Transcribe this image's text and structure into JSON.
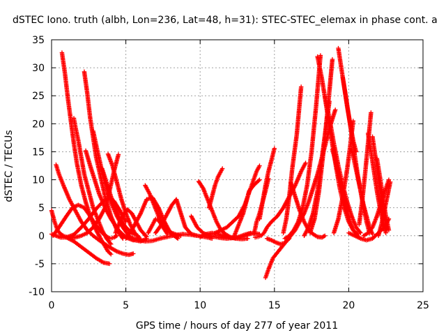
{
  "chart_data": {
    "type": "scatter",
    "title": "dSTEC Iono. truth (albh, Lon=236, Lat=48, h=31): STEC-STEC_elemax in phase cont. a",
    "xlabel": "GPS time / hours of day 277 of year 2011",
    "ylabel": "dSTEC  / TECUs",
    "xlim": [
      0,
      25
    ],
    "ylim": [
      -10,
      35
    ],
    "xticks": [
      0,
      5,
      10,
      15,
      20,
      25
    ],
    "yticks": [
      -10,
      -5,
      0,
      5,
      10,
      15,
      20,
      25,
      30,
      35
    ],
    "xtick_labels": [
      "0",
      "5",
      "10",
      "15",
      "20",
      "25"
    ],
    "ytick_labels": [
      "-10",
      "-5",
      "0",
      "5",
      "10",
      "15",
      "20",
      "25",
      "30",
      "35"
    ],
    "grid": true,
    "marker": "+",
    "series_color": "#ff0000",
    "series": [
      {
        "x": [
          0.0,
          0.2,
          0.4,
          0.6,
          0.8,
          1.0,
          1.3,
          1.6,
          2.0,
          2.4,
          2.8,
          3.2,
          3.6,
          3.9,
          4.2,
          4.5
        ],
        "y": [
          4.5,
          2.5,
          1.0,
          0.3,
          0.0,
          -0.2,
          -0.4,
          -0.3,
          0.0,
          0.5,
          1.5,
          3.0,
          5.0,
          8.0,
          11.5,
          14.5
        ]
      },
      {
        "x": [
          0.3,
          0.5,
          0.8,
          1.2,
          1.6,
          2.0,
          2.4,
          2.8,
          3.2,
          3.6,
          4.0,
          4.4,
          4.8,
          5.2,
          5.5
        ],
        "y": [
          12.7,
          11.0,
          9.0,
          6.5,
          4.5,
          2.5,
          1.0,
          0.0,
          -0.8,
          -1.5,
          -2.2,
          -2.8,
          -3.2,
          -3.4,
          -3.2
        ]
      },
      {
        "x": [
          0.1,
          0.5,
          1.0,
          1.4,
          1.8,
          2.2,
          2.6,
          3.0,
          3.4,
          3.8,
          4.0,
          4.2,
          4.4
        ],
        "y": [
          0.0,
          1.5,
          3.5,
          5.0,
          5.5,
          5.0,
          3.5,
          1.8,
          0.5,
          -0.3,
          -0.5,
          -0.3,
          0.0
        ]
      },
      {
        "x": [
          0.7,
          0.9,
          1.1,
          1.3,
          1.5,
          1.7,
          2.0,
          2.3,
          2.6,
          3.0,
          3.4,
          3.8,
          4.0
        ],
        "y": [
          32.7,
          29.0,
          24.5,
          20.5,
          16.5,
          13.0,
          9.0,
          6.0,
          3.5,
          1.0,
          -1.0,
          -2.8,
          -3.3
        ]
      },
      {
        "x": [
          0.0,
          0.3,
          0.6,
          1.0,
          1.5,
          2.0,
          2.5,
          3.0,
          3.5,
          3.9,
          4.2,
          4.6,
          5.0
        ],
        "y": [
          0.3,
          0.0,
          -0.3,
          -0.3,
          0.2,
          1.5,
          3.0,
          4.8,
          6.2,
          6.7,
          6.2,
          4.5,
          2.5
        ]
      },
      {
        "x": [
          1.0,
          1.5,
          2.0,
          2.5,
          3.0,
          3.5,
          3.9
        ],
        "y": [
          -0.3,
          -1.0,
          -2.0,
          -3.0,
          -4.0,
          -4.8,
          -5.0
        ]
      },
      {
        "x": [
          1.5,
          1.6,
          1.8,
          2.0,
          2.2,
          2.5,
          2.8,
          3.1,
          3.4,
          3.7,
          4.0
        ],
        "y": [
          21.0,
          19.5,
          17.0,
          14.0,
          11.0,
          8.0,
          5.0,
          3.0,
          1.0,
          -0.5,
          -1.5
        ]
      },
      {
        "x": [
          2.2,
          2.4,
          2.6,
          2.8,
          3.0,
          3.3,
          3.6,
          4.0,
          4.4,
          4.8
        ],
        "y": [
          29.3,
          25.5,
          21.0,
          17.5,
          14.0,
          10.5,
          7.0,
          3.5,
          1.0,
          -0.5
        ]
      },
      {
        "x": [
          2.3,
          2.6,
          2.9,
          3.2,
          3.6,
          4.0,
          4.5,
          5.0,
          5.5,
          5.9
        ],
        "y": [
          15.2,
          12.5,
          10.0,
          7.5,
          5.0,
          3.0,
          1.0,
          -0.3,
          -0.8,
          -0.5
        ]
      },
      {
        "x": [
          2.8,
          3.1,
          3.4,
          3.7,
          4.0,
          4.4,
          4.8,
          5.2,
          5.6,
          6.0,
          6.4
        ],
        "y": [
          18.7,
          15.0,
          11.5,
          8.5,
          6.0,
          3.5,
          1.5,
          0.0,
          -0.8,
          -1.0,
          -0.5
        ]
      },
      {
        "x": [
          3.4,
          3.7,
          4.0,
          4.3,
          4.6,
          5.0,
          5.4,
          5.8
        ],
        "y": [
          12.0,
          9.5,
          7.0,
          5.0,
          3.0,
          1.5,
          0.5,
          0.0
        ]
      },
      {
        "x": [
          3.8,
          4.1,
          4.4,
          4.7,
          5.0,
          5.3,
          5.6,
          5.9
        ],
        "y": [
          14.6,
          12.5,
          9.5,
          6.5,
          4.0,
          2.0,
          0.5,
          -0.3
        ]
      },
      {
        "x": [
          4.3,
          4.6,
          4.9,
          5.1,
          5.4,
          5.7,
          6.0,
          6.4
        ],
        "y": [
          0.5,
          2.5,
          4.0,
          4.7,
          4.0,
          2.5,
          1.0,
          -0.2
        ]
      },
      {
        "x": [
          4.8,
          5.3,
          5.8,
          6.3,
          6.8,
          7.3,
          7.8,
          8.3,
          8.8,
          9.3,
          9.8,
          10.3,
          10.8
        ],
        "y": [
          0.0,
          -0.3,
          -0.7,
          -1.0,
          -0.9,
          -0.5,
          -0.2,
          0.1,
          0.3,
          0.2,
          0.0,
          -0.2,
          -0.5
        ]
      },
      {
        "x": [
          5.0,
          5.5,
          6.0,
          6.4,
          6.8,
          7.2,
          7.6,
          8.0,
          8.5
        ],
        "y": [
          -0.5,
          1.5,
          4.0,
          6.5,
          6.8,
          5.0,
          2.5,
          0.5,
          -0.5
        ]
      },
      {
        "x": [
          6.3,
          6.6,
          6.9,
          7.2,
          7.5,
          7.8,
          8.1,
          8.4,
          8.7
        ],
        "y": [
          9.0,
          7.5,
          5.5,
          3.5,
          2.0,
          1.0,
          0.5,
          0.2,
          0.0
        ]
      },
      {
        "x": [
          6.5,
          6.8,
          7.0,
          7.2,
          7.5,
          7.8
        ],
        "y": [
          0.5,
          2.0,
          3.0,
          2.8,
          1.5,
          0.3
        ]
      },
      {
        "x": [
          7.0,
          7.4,
          7.8,
          8.1,
          8.4,
          8.7,
          9.0,
          9.4,
          9.8
        ],
        "y": [
          0.5,
          2.0,
          4.0,
          5.5,
          6.5,
          4.0,
          1.5,
          0.3,
          0.0
        ]
      },
      {
        "x": [
          9.4,
          9.8,
          10.2,
          10.6,
          11.0,
          11.4,
          11.8,
          12.2,
          12.6,
          13.0,
          13.4
        ],
        "y": [
          3.5,
          1.5,
          0.5,
          0.0,
          -0.2,
          -0.4,
          -0.5,
          -0.4,
          -0.2,
          0.2,
          0.5
        ]
      },
      {
        "x": [
          9.9,
          10.2,
          10.5,
          10.8,
          11.1,
          11.4,
          11.7,
          12.0,
          12.4,
          12.8,
          13.2
        ],
        "y": [
          9.7,
          8.5,
          6.5,
          4.5,
          2.5,
          1.0,
          0.3,
          -0.2,
          -0.5,
          -0.6,
          -0.5
        ]
      },
      {
        "x": [
          10.0,
          10.4,
          10.8,
          11.2,
          11.6,
          12.0,
          12.4,
          12.8,
          13.2,
          13.6,
          14.0
        ],
        "y": [
          -0.2,
          0.3,
          0.5,
          0.3,
          0.0,
          -0.3,
          -0.5,
          -0.2,
          0.2,
          0.5,
          0.3
        ]
      },
      {
        "x": [
          10.6,
          10.8,
          11.0,
          11.2,
          11.5
        ],
        "y": [
          5.0,
          7.0,
          9.0,
          10.5,
          12.0
        ]
      },
      {
        "x": [
          11.0,
          11.4,
          11.8,
          12.2,
          12.6,
          13.0,
          13.2,
          13.4,
          13.6,
          13.8,
          14.0
        ],
        "y": [
          0.5,
          1.0,
          1.5,
          2.5,
          3.5,
          5.5,
          7.0,
          8.5,
          10.0,
          11.5,
          12.5
        ]
      },
      {
        "x": [
          12.3,
          12.6,
          12.9,
          13.1,
          13.3,
          13.6,
          14.0
        ],
        "y": [
          0.0,
          2.0,
          4.0,
          6.0,
          8.0,
          9.0,
          10.0
        ]
      },
      {
        "x": [
          13.6,
          13.7,
          13.8,
          14.0,
          14.2,
          14.4,
          14.6
        ],
        "y": [
          0.3,
          1.2,
          2.5,
          4.0,
          6.0,
          8.0,
          10.2
        ]
      },
      {
        "x": [
          13.7,
          13.9,
          14.1,
          14.3,
          14.5,
          14.8,
          15.2,
          15.6,
          16.0,
          16.4,
          16.8,
          17.1
        ],
        "y": [
          -0.3,
          -0.2,
          0.0,
          0.5,
          1.5,
          2.5,
          3.5,
          5.0,
          7.0,
          9.0,
          11.5,
          13.0
        ]
      },
      {
        "x": [
          14.0,
          14.2,
          14.4,
          14.6,
          14.8,
          15.0
        ],
        "y": [
          3.0,
          6.0,
          9.0,
          11.5,
          13.5,
          15.6
        ]
      },
      {
        "x": [
          14.4,
          14.6,
          14.9,
          15.2,
          15.5,
          15.8,
          16.1,
          16.4,
          16.7,
          17.0,
          17.3,
          17.6,
          17.9,
          18.2,
          18.5,
          18.8,
          19.1
        ],
        "y": [
          -7.5,
          -6.0,
          -4.0,
          -3.0,
          -2.0,
          -1.0,
          0.0,
          1.0,
          2.5,
          4.0,
          6.0,
          8.5,
          11.0,
          14.0,
          17.0,
          20.0,
          22.5
        ]
      },
      {
        "x": [
          14.5,
          14.8,
          15.1,
          15.4,
          15.7,
          16.0
        ],
        "y": [
          -0.5,
          -0.8,
          -1.2,
          -1.5,
          -1.3,
          -0.5
        ]
      },
      {
        "x": [
          15.6,
          15.8,
          16.0,
          16.2,
          16.5,
          16.8
        ],
        "y": [
          0.5,
          3.0,
          7.0,
          12.0,
          18.0,
          26.6
        ]
      },
      {
        "x": [
          15.7,
          16.0,
          16.3,
          16.6,
          16.9,
          17.2,
          17.5,
          17.8,
          18.1
        ],
        "y": [
          -0.5,
          0.0,
          1.0,
          2.5,
          5.0,
          9.0,
          15.0,
          23.0,
          32.2
        ]
      },
      {
        "x": [
          16.1,
          16.4,
          16.7,
          17.0,
          17.3,
          17.6,
          17.9,
          18.2,
          18.4
        ],
        "y": [
          9.5,
          7.0,
          4.5,
          2.5,
          1.0,
          0.3,
          -0.2,
          -0.3,
          0.0
        ]
      },
      {
        "x": [
          17.0,
          17.3,
          17.6,
          17.9,
          18.2,
          18.5,
          18.7
        ],
        "y": [
          0.0,
          1.5,
          4.0,
          8.0,
          14.0,
          20.0,
          24.0
        ]
      },
      {
        "x": [
          17.4,
          17.7,
          18.0,
          18.3,
          18.6,
          18.9
        ],
        "y": [
          0.5,
          3.0,
          8.0,
          15.0,
          23.0,
          31.5
        ]
      },
      {
        "x": [
          17.9,
          18.2,
          18.5,
          18.8,
          19.1,
          19.4,
          19.7,
          20.0,
          20.3,
          20.6
        ],
        "y": [
          32.0,
          28.0,
          23.0,
          18.0,
          13.0,
          8.5,
          5.0,
          2.5,
          1.0,
          0.3
        ]
      },
      {
        "x": [
          18.4,
          18.7,
          19.0,
          19.3,
          19.6,
          19.9,
          20.2,
          20.5,
          20.8
        ],
        "y": [
          24.8,
          21.0,
          16.5,
          12.5,
          9.0,
          6.0,
          3.5,
          1.5,
          0.5
        ]
      },
      {
        "x": [
          18.9,
          19.1,
          19.3,
          19.5,
          19.7,
          19.9,
          20.1,
          20.3,
          20.5,
          20.7
        ],
        "y": [
          15.4,
          13.5,
          11.0,
          9.0,
          6.5,
          4.5,
          2.5,
          1.0,
          0.3,
          -0.3
        ]
      },
      {
        "x": [
          19.3,
          19.5,
          19.7,
          19.9,
          20.1,
          20.3,
          20.5
        ],
        "y": [
          33.5,
          30.0,
          26.5,
          23.0,
          20.0,
          17.0,
          15.0
        ]
      },
      {
        "x": [
          19.6,
          19.8,
          20.0,
          20.2,
          20.4,
          20.6,
          20.8,
          21.0,
          21.2,
          21.4
        ],
        "y": [
          28.2,
          25.0,
          21.5,
          18.0,
          14.5,
          11.0,
          8.0,
          5.0,
          2.5,
          0.5
        ]
      },
      {
        "x": [
          19.0,
          19.3,
          19.6,
          19.9,
          20.1,
          20.3
        ],
        "y": [
          0.5,
          3.0,
          7.0,
          12.0,
          16.0,
          20.5
        ]
      },
      {
        "x": [
          20.2,
          20.4,
          20.6,
          20.8,
          21.0,
          21.2,
          21.4,
          21.6
        ],
        "y": [
          15.5,
          13.0,
          10.5,
          8.0,
          5.5,
          3.5,
          1.5,
          0.3
        ]
      },
      {
        "x": [
          20.7,
          20.9,
          21.1,
          21.3,
          21.5
        ],
        "y": [
          2.0,
          6.0,
          11.0,
          16.5,
          22.0
        ]
      },
      {
        "x": [
          21.3,
          21.5,
          21.7,
          21.9,
          22.1,
          22.3,
          22.5
        ],
        "y": [
          18.3,
          15.0,
          11.5,
          8.0,
          5.0,
          2.5,
          0.5
        ]
      },
      {
        "x": [
          21.6,
          21.8,
          22.0,
          22.2,
          22.4,
          22.6
        ],
        "y": [
          17.7,
          14.0,
          10.0,
          6.5,
          3.5,
          1.0
        ]
      },
      {
        "x": [
          21.9,
          22.1,
          22.3,
          22.5,
          22.7
        ],
        "y": [
          13.8,
          10.5,
          7.0,
          3.5,
          1.0
        ]
      },
      {
        "x": [
          20.0,
          20.4,
          20.8,
          21.2,
          21.6,
          22.0,
          22.4,
          22.7
        ],
        "y": [
          0.5,
          0.0,
          -0.5,
          -0.8,
          -0.5,
          0.5,
          1.5,
          3.0
        ]
      },
      {
        "x": [
          21.0,
          21.3,
          21.6,
          21.9,
          22.2,
          22.5,
          22.7
        ],
        "y": [
          0.0,
          0.5,
          1.5,
          3.5,
          6.0,
          8.5,
          10.0
        ]
      },
      {
        "x": [
          22.0,
          22.2,
          22.4,
          22.6,
          22.8
        ],
        "y": [
          0.0,
          2.0,
          4.5,
          7.0,
          9.6
        ]
      }
    ]
  }
}
